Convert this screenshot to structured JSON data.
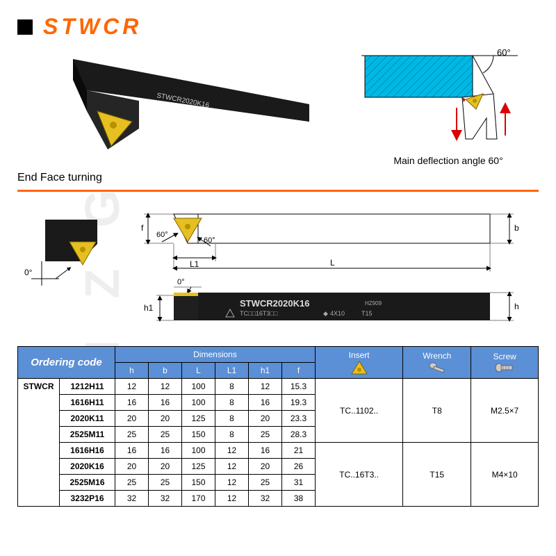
{
  "title": "STWCR",
  "section_label": "End Face turning",
  "deflection_label": "Main deflection angle 60°",
  "angle_60": "60°",
  "angle_0": "0°",
  "tool_labels": {
    "model": "STWCR2020K16",
    "sub1": "TC□□16T3□□",
    "sub2": "4X10",
    "sub3": "T15",
    "hz": "HZ909"
  },
  "dims": {
    "h": "h",
    "b": "b",
    "L": "L",
    "L1": "L1",
    "h1": "h1",
    "f": "f"
  },
  "headers": {
    "ordering": "Ordering code",
    "dimensions": "Dimensions",
    "insert": "Insert",
    "wrench": "Wrench",
    "screw": "Screw"
  },
  "family": "STWCR",
  "rows": [
    {
      "code": "1212H11",
      "h": "12",
      "b": "12",
      "L": "100",
      "L1": "8",
      "h1": "12",
      "f": "15.3"
    },
    {
      "code": "1616H11",
      "h": "16",
      "b": "16",
      "L": "100",
      "L1": "8",
      "h1": "16",
      "f": "19.3"
    },
    {
      "code": "2020K11",
      "h": "20",
      "b": "20",
      "L": "125",
      "L1": "8",
      "h1": "20",
      "f": "23.3"
    },
    {
      "code": "2525M11",
      "h": "25",
      "b": "25",
      "L": "150",
      "L1": "8",
      "h1": "25",
      "f": "28.3"
    },
    {
      "code": "1616H16",
      "h": "16",
      "b": "16",
      "L": "100",
      "L1": "12",
      "h1": "16",
      "f": "21"
    },
    {
      "code": "2020K16",
      "h": "20",
      "b": "20",
      "L": "125",
      "L1": "12",
      "h1": "20",
      "f": "26"
    },
    {
      "code": "2525M16",
      "h": "25",
      "b": "25",
      "L": "150",
      "L1": "12",
      "h1": "25",
      "f": "31"
    },
    {
      "code": "3232P16",
      "h": "32",
      "b": "32",
      "L": "170",
      "L1": "12",
      "h1": "32",
      "f": "38"
    }
  ],
  "groups": [
    {
      "insert": "TC..1102..",
      "wrench": "T8",
      "screw": "M2.5×7",
      "span": 4
    },
    {
      "insert": "TC..16T3..",
      "wrench": "T15",
      "screw": "M4×10",
      "span": 4
    }
  ],
  "colors": {
    "orange": "#ff6600",
    "blue_hdr": "#5b8fd6",
    "cyan": "#00b8e6",
    "gold": "#e6c020",
    "tool_black": "#1a1a1a"
  },
  "watermark": "M Z G"
}
